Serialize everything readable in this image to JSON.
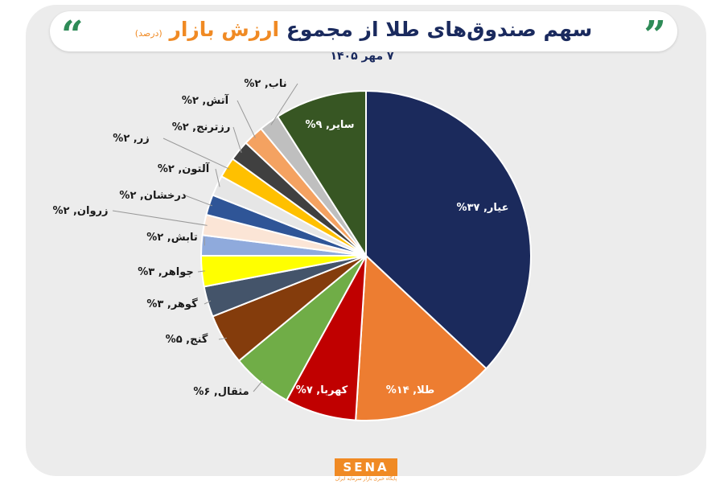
{
  "chart_data": {
    "type": "pie",
    "title": "سهم صندوق‌های طلا از مجموع",
    "title_highlight": "ارزش بازار",
    "subtitle": "(درصد)",
    "date": "۷ مهر ۱۴۰۵",
    "categories": [
      "عیار",
      "طلا",
      "کهربا",
      "مثقال",
      "گنج",
      "گوهر",
      "جواهر",
      "تابش",
      "زروان",
      "درخشان",
      "آلتون",
      "زر",
      "رزترنج",
      "آتش",
      "ناب",
      "سایر"
    ],
    "values": [
      37,
      14,
      7,
      6,
      5,
      3,
      3,
      2,
      2,
      2,
      2,
      2,
      2,
      2,
      2,
      9
    ],
    "value_labels": [
      ", ۳۷%",
      ", ۱۴%",
      ", ۷%",
      ", ۶%",
      ", ۵%",
      ", ۳%",
      ", ۳%",
      ", ۲%",
      ", ۲%",
      ", ۲%",
      ", ۲%",
      ", ۲%",
      ", ۲%",
      ", ۲%",
      ", ۲%",
      ", ۹%"
    ],
    "colors": [
      "#1b2a5c",
      "#ed7d31",
      "#c00000",
      "#70ad47",
      "#843c0c",
      "#44546a",
      "#ffff00",
      "#8faadc",
      "#fbe5d6",
      "#2f5597",
      "#e6e6e6",
      "#ffc000",
      "#404040",
      "#f4a261",
      "#bfbfbf",
      "#375623"
    ]
  },
  "logo": {
    "name": "SENA",
    "caption": "پایگاه خبری بازار سرمایه ایران"
  }
}
